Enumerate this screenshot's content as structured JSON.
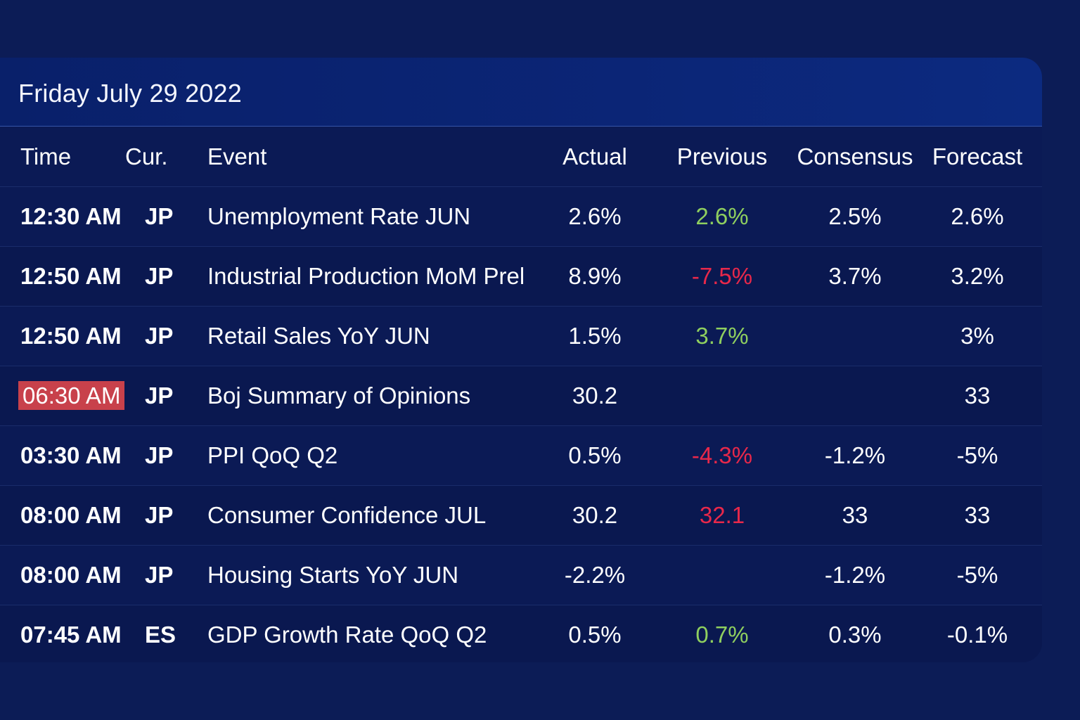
{
  "calendar": {
    "date_label": "Friday July 29 2022",
    "columns": {
      "time": "Time",
      "currency": "Cur.",
      "event": "Event",
      "actual": "Actual",
      "previous": "Previous",
      "consensus": "Consensus",
      "forecast": "Forecast"
    },
    "rows": [
      {
        "time": "12:30 AM",
        "currency": "JP",
        "event": "Unemployment Rate JUN",
        "actual": "2.6%",
        "previous": "2.6%",
        "previous_trend": "positive",
        "consensus": "2.5%",
        "forecast": "2.6%"
      },
      {
        "time": "12:50 AM",
        "currency": "JP",
        "event": "Industrial Production MoM Prel",
        "actual": "8.9%",
        "previous": "-7.5%",
        "previous_trend": "negative",
        "consensus": "3.7%",
        "forecast": "3.2%"
      },
      {
        "time": "12:50 AM",
        "currency": "JP",
        "event": "Retail Sales YoY JUN",
        "actual": "1.5%",
        "previous": "3.7%",
        "previous_trend": "positive",
        "consensus": "",
        "forecast": "3%"
      },
      {
        "time": "06:30 AM",
        "time_highlighted": true,
        "currency": "JP",
        "event": "Boj Summary of Opinions",
        "actual": "30.2",
        "previous": "",
        "previous_trend": "",
        "consensus": "",
        "forecast": "33"
      },
      {
        "time": "03:30 AM",
        "currency": "JP",
        "event": "PPI QoQ Q2",
        "actual": "0.5%",
        "previous": "-4.3%",
        "previous_trend": "negative",
        "consensus": "-1.2%",
        "forecast": "-5%"
      },
      {
        "time": "08:00 AM",
        "currency": "JP",
        "event": "Consumer Confidence JUL",
        "actual": "30.2",
        "previous": "32.1",
        "previous_trend": "negative",
        "consensus": "33",
        "forecast": "33"
      },
      {
        "time": "08:00 AM",
        "currency": "JP",
        "event": "Housing Starts YoY JUN",
        "actual": "-2.2%",
        "previous": "",
        "previous_trend": "",
        "consensus": "-1.2%",
        "forecast": "-5%"
      },
      {
        "time": "07:45 AM",
        "currency": "ES",
        "event": "GDP Growth Rate QoQ Q2",
        "actual": "0.5%",
        "previous": "0.7%",
        "previous_trend": "positive",
        "consensus": "0.3%",
        "forecast": "-0.1%"
      }
    ]
  },
  "colors": {
    "background": "#0c1c56",
    "positive": "#8fcf5f",
    "negative": "#e8284a",
    "highlight": "#c8414b"
  }
}
